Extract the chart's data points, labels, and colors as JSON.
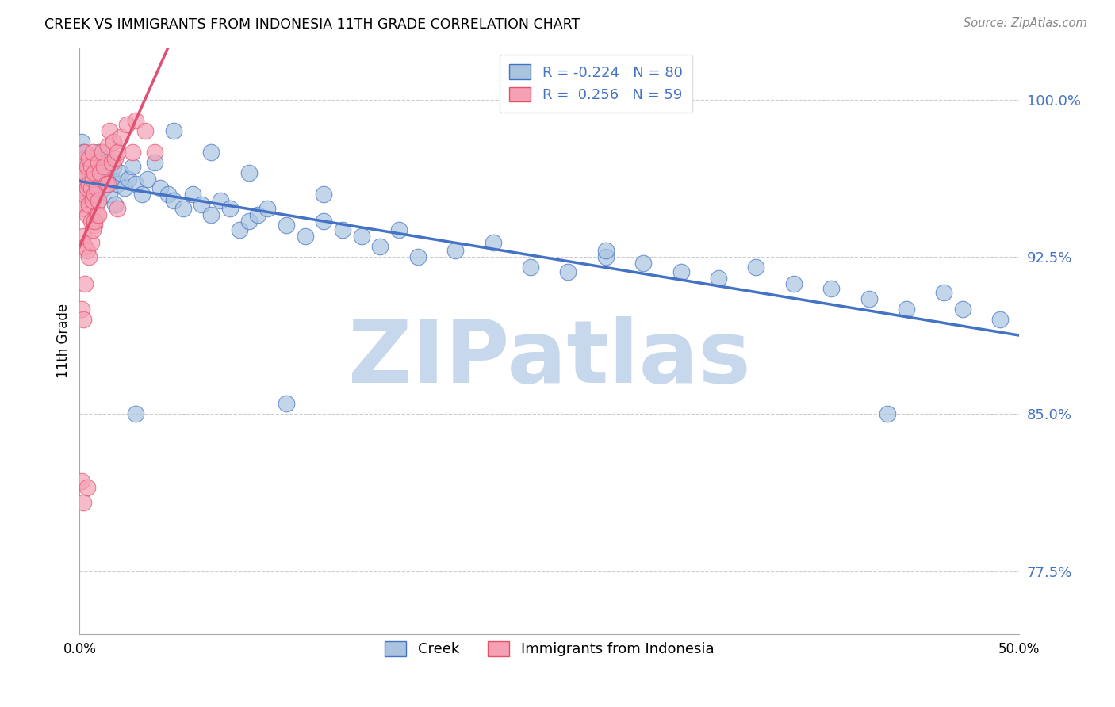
{
  "title": "CREEK VS IMMIGRANTS FROM INDONESIA 11TH GRADE CORRELATION CHART",
  "source": "Source: ZipAtlas.com",
  "ylabel": "11th Grade",
  "ytick_vals": [
    0.775,
    0.85,
    0.925,
    1.0
  ],
  "ytick_labels": [
    "77.5%",
    "85.0%",
    "92.5%",
    "100.0%"
  ],
  "xmin": 0.0,
  "xmax": 0.5,
  "ymin": 0.745,
  "ymax": 1.025,
  "blue_color": "#aac4e0",
  "pink_color": "#f5a0b5",
  "blue_edge_color": "#4472c4",
  "pink_edge_color": "#e8506a",
  "blue_line_color": "#4472c4",
  "pink_line_color": "#e05070",
  "watermark_text": "ZIPatlas",
  "watermark_color": "#c8d8ec",
  "legend_blue_label": "R = -0.224   N = 80",
  "legend_pink_label": "R =  0.256   N = 59",
  "blue_scatter_x": [
    0.001,
    0.002,
    0.002,
    0.003,
    0.003,
    0.004,
    0.004,
    0.005,
    0.005,
    0.006,
    0.006,
    0.007,
    0.007,
    0.008,
    0.009,
    0.01,
    0.01,
    0.011,
    0.012,
    0.013,
    0.014,
    0.015,
    0.016,
    0.017,
    0.018,
    0.019,
    0.02,
    0.022,
    0.024,
    0.026,
    0.028,
    0.03,
    0.033,
    0.036,
    0.04,
    0.043,
    0.047,
    0.05,
    0.055,
    0.06,
    0.065,
    0.07,
    0.075,
    0.08,
    0.085,
    0.09,
    0.095,
    0.1,
    0.11,
    0.12,
    0.13,
    0.14,
    0.15,
    0.16,
    0.17,
    0.18,
    0.2,
    0.22,
    0.24,
    0.26,
    0.28,
    0.3,
    0.32,
    0.34,
    0.36,
    0.38,
    0.4,
    0.42,
    0.44,
    0.46,
    0.05,
    0.07,
    0.09,
    0.13,
    0.28,
    0.47,
    0.49,
    0.03,
    0.11,
    0.43
  ],
  "blue_scatter_y": [
    0.98,
    0.975,
    0.968,
    0.972,
    0.965,
    0.96,
    0.955,
    0.97,
    0.958,
    0.965,
    0.952,
    0.968,
    0.96,
    0.955,
    0.958,
    0.975,
    0.952,
    0.96,
    0.972,
    0.958,
    0.965,
    0.97,
    0.955,
    0.962,
    0.968,
    0.95,
    0.96,
    0.965,
    0.958,
    0.962,
    0.968,
    0.96,
    0.955,
    0.962,
    0.97,
    0.958,
    0.955,
    0.952,
    0.948,
    0.955,
    0.95,
    0.945,
    0.952,
    0.948,
    0.938,
    0.942,
    0.945,
    0.948,
    0.94,
    0.935,
    0.942,
    0.938,
    0.935,
    0.93,
    0.938,
    0.925,
    0.928,
    0.932,
    0.92,
    0.918,
    0.925,
    0.922,
    0.918,
    0.915,
    0.92,
    0.912,
    0.91,
    0.905,
    0.9,
    0.908,
    0.985,
    0.975,
    0.965,
    0.955,
    0.928,
    0.9,
    0.895,
    0.85,
    0.855,
    0.85
  ],
  "pink_scatter_x": [
    0.001,
    0.001,
    0.002,
    0.002,
    0.002,
    0.003,
    0.003,
    0.003,
    0.004,
    0.004,
    0.004,
    0.005,
    0.005,
    0.005,
    0.006,
    0.006,
    0.006,
    0.007,
    0.007,
    0.007,
    0.008,
    0.008,
    0.008,
    0.009,
    0.009,
    0.01,
    0.01,
    0.011,
    0.012,
    0.013,
    0.014,
    0.015,
    0.016,
    0.017,
    0.018,
    0.019,
    0.02,
    0.022,
    0.025,
    0.028,
    0.03,
    0.035,
    0.04,
    0.002,
    0.003,
    0.004,
    0.005,
    0.006,
    0.007,
    0.008,
    0.001,
    0.002,
    0.003,
    0.01,
    0.015,
    0.02,
    0.001,
    0.002,
    0.004
  ],
  "pink_scatter_y": [
    0.958,
    0.95,
    0.97,
    0.962,
    0.948,
    0.975,
    0.965,
    0.955,
    0.968,
    0.958,
    0.945,
    0.972,
    0.96,
    0.95,
    0.968,
    0.958,
    0.942,
    0.975,
    0.962,
    0.952,
    0.965,
    0.955,
    0.94,
    0.958,
    0.945,
    0.97,
    0.952,
    0.965,
    0.975,
    0.968,
    0.96,
    0.978,
    0.985,
    0.97,
    0.98,
    0.972,
    0.975,
    0.982,
    0.988,
    0.975,
    0.99,
    0.985,
    0.975,
    0.935,
    0.93,
    0.928,
    0.925,
    0.932,
    0.938,
    0.942,
    0.9,
    0.895,
    0.912,
    0.945,
    0.96,
    0.948,
    0.818,
    0.808,
    0.815
  ]
}
